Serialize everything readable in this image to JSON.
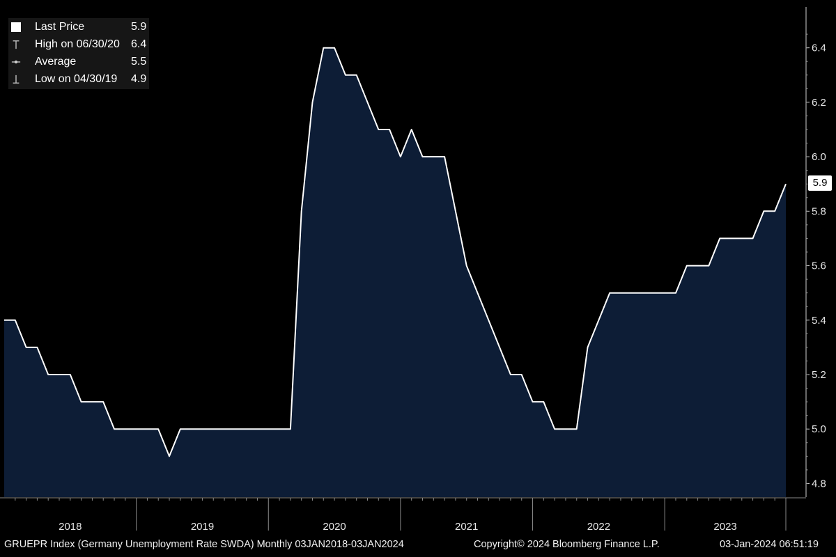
{
  "legend": {
    "items": [
      {
        "label": "Last Price",
        "value": "5.9",
        "icon": "square-icon"
      },
      {
        "label": "High on 06/30/20",
        "value": "6.4",
        "icon": "high-marker-icon"
      },
      {
        "label": "Average",
        "value": "5.5",
        "icon": "average-marker-icon"
      },
      {
        "label": "Low on 04/30/19",
        "value": "4.9",
        "icon": "low-marker-icon"
      }
    ]
  },
  "last_tag": "5.9",
  "footer": {
    "left": "GRUEPR Index (Germany Unemployment Rate SWDA)  Monthly 03JAN2018-03JAN2024",
    "center": "Copyright© 2024 Bloomberg Finance L.P.",
    "right": "03-Jan-2024 06:51:19"
  },
  "colors": {
    "background": "#000000",
    "fill": "#0d1d36",
    "line": "#ffffff",
    "legend_bg": "#161616"
  },
  "chart_data": {
    "type": "area",
    "title": "",
    "xlabel": "",
    "ylabel": "",
    "ylim": [
      4.75,
      6.55
    ],
    "yticks": [
      4.8,
      5.0,
      5.2,
      5.4,
      5.6,
      5.8,
      6.0,
      6.2,
      6.4
    ],
    "ytick_labels": [
      "4.8",
      "5.0",
      "5.2",
      "5.4",
      "5.6",
      "5.8",
      "6.0",
      "6.2",
      "6.4"
    ],
    "xlim": [
      "2018-01",
      "2024-01"
    ],
    "x_categories": [
      "2018",
      "2019",
      "2020",
      "2021",
      "2022",
      "2023"
    ],
    "grid": false,
    "legend_position": "top-left",
    "series": [
      {
        "x": [
          "2018-01",
          "2018-02",
          "2018-03",
          "2018-04",
          "2018-05",
          "2018-06",
          "2018-07",
          "2018-08",
          "2018-09",
          "2018-10",
          "2018-11",
          "2018-12",
          "2019-01",
          "2019-02",
          "2019-03",
          "2019-04",
          "2019-05",
          "2019-06",
          "2019-07",
          "2019-08",
          "2019-09",
          "2019-10",
          "2019-11",
          "2019-12",
          "2020-01",
          "2020-02",
          "2020-03",
          "2020-04",
          "2020-05",
          "2020-06",
          "2020-07",
          "2020-08",
          "2020-09",
          "2020-10",
          "2020-11",
          "2020-12",
          "2021-01",
          "2021-02",
          "2021-03",
          "2021-04",
          "2021-05",
          "2021-06",
          "2021-07",
          "2021-08",
          "2021-09",
          "2021-10",
          "2021-11",
          "2021-12",
          "2022-01",
          "2022-02",
          "2022-03",
          "2022-04",
          "2022-05",
          "2022-06",
          "2022-07",
          "2022-08",
          "2022-09",
          "2022-10",
          "2022-11",
          "2022-12",
          "2023-01",
          "2023-02",
          "2023-03",
          "2023-04",
          "2023-05",
          "2023-06",
          "2023-07",
          "2023-08",
          "2023-09",
          "2023-10",
          "2023-11",
          "2023-12"
        ],
        "values": [
          5.4,
          5.4,
          5.3,
          5.3,
          5.2,
          5.2,
          5.2,
          5.1,
          5.1,
          5.1,
          5.0,
          5.0,
          5.0,
          5.0,
          5.0,
          4.9,
          5.0,
          5.0,
          5.0,
          5.0,
          5.0,
          5.0,
          5.0,
          5.0,
          5.0,
          5.0,
          5.0,
          5.8,
          6.2,
          6.4,
          6.4,
          6.3,
          6.3,
          6.2,
          6.1,
          6.1,
          6.0,
          6.1,
          6.0,
          6.0,
          6.0,
          5.8,
          5.6,
          5.5,
          5.4,
          5.3,
          5.2,
          5.2,
          5.1,
          5.1,
          5.0,
          5.0,
          5.0,
          5.3,
          5.4,
          5.5,
          5.5,
          5.5,
          5.5,
          5.5,
          5.5,
          5.5,
          5.6,
          5.6,
          5.6,
          5.7,
          5.7,
          5.7,
          5.7,
          5.8,
          5.8,
          5.9
        ]
      }
    ]
  }
}
